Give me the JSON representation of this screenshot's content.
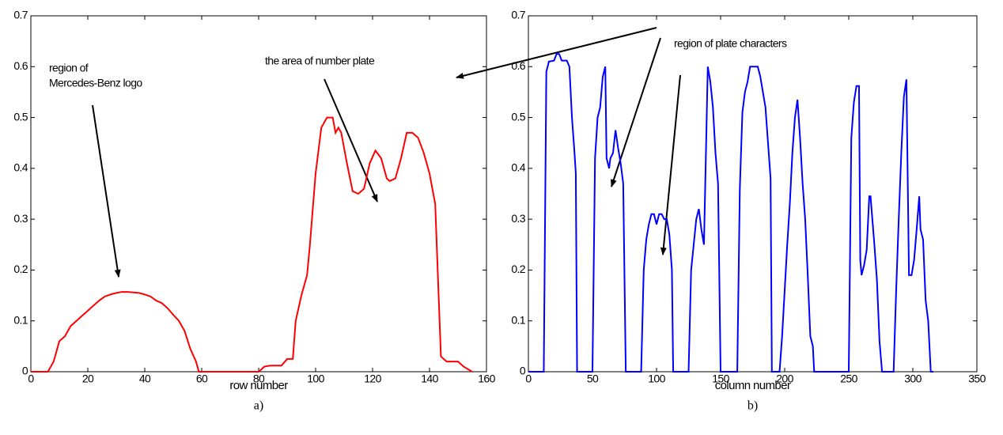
{
  "chart_data": [
    {
      "type": "line",
      "x_label": "row number",
      "caption": "a)",
      "annotations": [
        "region of",
        "Mercedes-Benz logo",
        "the area of number plate"
      ],
      "xlim": [
        0,
        160
      ],
      "xticks": [
        0,
        20,
        40,
        60,
        80,
        100,
        120,
        140,
        160
      ],
      "ylim": [
        0,
        0.7
      ],
      "yticks": [
        0,
        0.1,
        0.2,
        0.3,
        0.4,
        0.5,
        0.6,
        0.7
      ],
      "x": [
        0,
        6,
        8,
        10,
        12,
        14,
        16,
        18,
        20,
        22,
        24,
        26,
        28,
        30,
        32,
        34,
        36,
        38,
        40,
        42,
        44,
        46,
        48,
        50,
        52,
        54,
        56,
        58,
        59,
        80,
        82,
        84,
        88,
        90,
        92,
        93,
        95,
        97,
        98,
        100,
        102,
        104,
        106,
        107,
        108,
        109,
        111,
        113,
        115,
        117,
        119,
        121,
        123,
        125,
        126,
        128,
        130,
        132,
        134,
        136,
        138,
        140,
        142,
        144,
        146,
        150,
        152,
        155
      ],
      "series": [
        {
          "color": "#ff0000",
          "values": [
            0,
            0,
            0.02,
            0.06,
            0.07,
            0.09,
            0.1,
            0.11,
            0.12,
            0.13,
            0.14,
            0.148,
            0.152,
            0.155,
            0.157,
            0.157,
            0.156,
            0.155,
            0.152,
            0.148,
            0.14,
            0.135,
            0.125,
            0.112,
            0.1,
            0.08,
            0.045,
            0.02,
            0,
            0,
            0.01,
            0.012,
            0.012,
            0.025,
            0.025,
            0.1,
            0.15,
            0.19,
            0.25,
            0.39,
            0.48,
            0.5,
            0.5,
            0.47,
            0.48,
            0.47,
            0.41,
            0.355,
            0.35,
            0.36,
            0.41,
            0.435,
            0.42,
            0.38,
            0.375,
            0.38,
            0.42,
            0.47,
            0.47,
            0.46,
            0.43,
            0.39,
            0.33,
            0.03,
            0.02,
            0.02,
            0.01,
            0
          ]
        }
      ]
    },
    {
      "type": "line",
      "x_label": "column number",
      "caption": "b)",
      "annotations": [
        "region of plate characters"
      ],
      "xlim": [
        0,
        350
      ],
      "xticks": [
        0,
        50,
        100,
        150,
        200,
        250,
        300,
        350
      ],
      "ylim": [
        0,
        0.7
      ],
      "yticks": [
        0,
        0.1,
        0.2,
        0.3,
        0.4,
        0.5,
        0.6,
        0.7
      ],
      "x": [
        0,
        12,
        14,
        16,
        20,
        22,
        24,
        26,
        30,
        32,
        34,
        36,
        37,
        38,
        50,
        52,
        54,
        56,
        58,
        60,
        61,
        63,
        64,
        66,
        68,
        70,
        72,
        74,
        76,
        88,
        90,
        92,
        94,
        96,
        98,
        100,
        102,
        104,
        106,
        108,
        110,
        112,
        113,
        125,
        127,
        129,
        131,
        133,
        135,
        137,
        140,
        142,
        144,
        146,
        148,
        150,
        163,
        165,
        167,
        169,
        171,
        173,
        179,
        181,
        183,
        185,
        187,
        189,
        190,
        196,
        198,
        200,
        202,
        204,
        206,
        208,
        210,
        212,
        214,
        216,
        218,
        220,
        222,
        223,
        250,
        252,
        254,
        256,
        258,
        259,
        260,
        262,
        264,
        266,
        267,
        270,
        272,
        274,
        276,
        285,
        287,
        289,
        291,
        293,
        295,
        297,
        299,
        301,
        303,
        305,
        306,
        308,
        310,
        312,
        314,
        316
      ],
      "series": [
        {
          "color": "#0000ff",
          "values": [
            0,
            0,
            0.59,
            0.61,
            0.612,
            0.625,
            0.625,
            0.612,
            0.612,
            0.6,
            0.5,
            0.43,
            0.39,
            0,
            0,
            0.42,
            0.5,
            0.52,
            0.58,
            0.6,
            0.42,
            0.4,
            0.42,
            0.43,
            0.475,
            0.44,
            0.41,
            0.37,
            0,
            0,
            0.2,
            0.26,
            0.29,
            0.31,
            0.31,
            0.29,
            0.31,
            0.31,
            0.3,
            0.3,
            0.27,
            0.2,
            0,
            0,
            0.2,
            0.25,
            0.3,
            0.32,
            0.28,
            0.25,
            0.6,
            0.57,
            0.52,
            0.43,
            0.37,
            0,
            0,
            0.36,
            0.51,
            0.55,
            0.57,
            0.6,
            0.6,
            0.58,
            0.55,
            0.52,
            0.45,
            0.38,
            0,
            0,
            0.07,
            0.16,
            0.25,
            0.33,
            0.43,
            0.5,
            0.535,
            0.46,
            0.37,
            0.3,
            0.19,
            0.07,
            0.05,
            0,
            0,
            0.46,
            0.53,
            0.562,
            0.562,
            0.22,
            0.19,
            0.21,
            0.24,
            0.345,
            0.345,
            0.25,
            0.18,
            0.06,
            0,
            0,
            0.16,
            0.3,
            0.43,
            0.54,
            0.575,
            0.19,
            0.19,
            0.22,
            0.28,
            0.345,
            0.28,
            0.26,
            0.14,
            0.1,
            0,
            0
          ]
        }
      ]
    }
  ]
}
